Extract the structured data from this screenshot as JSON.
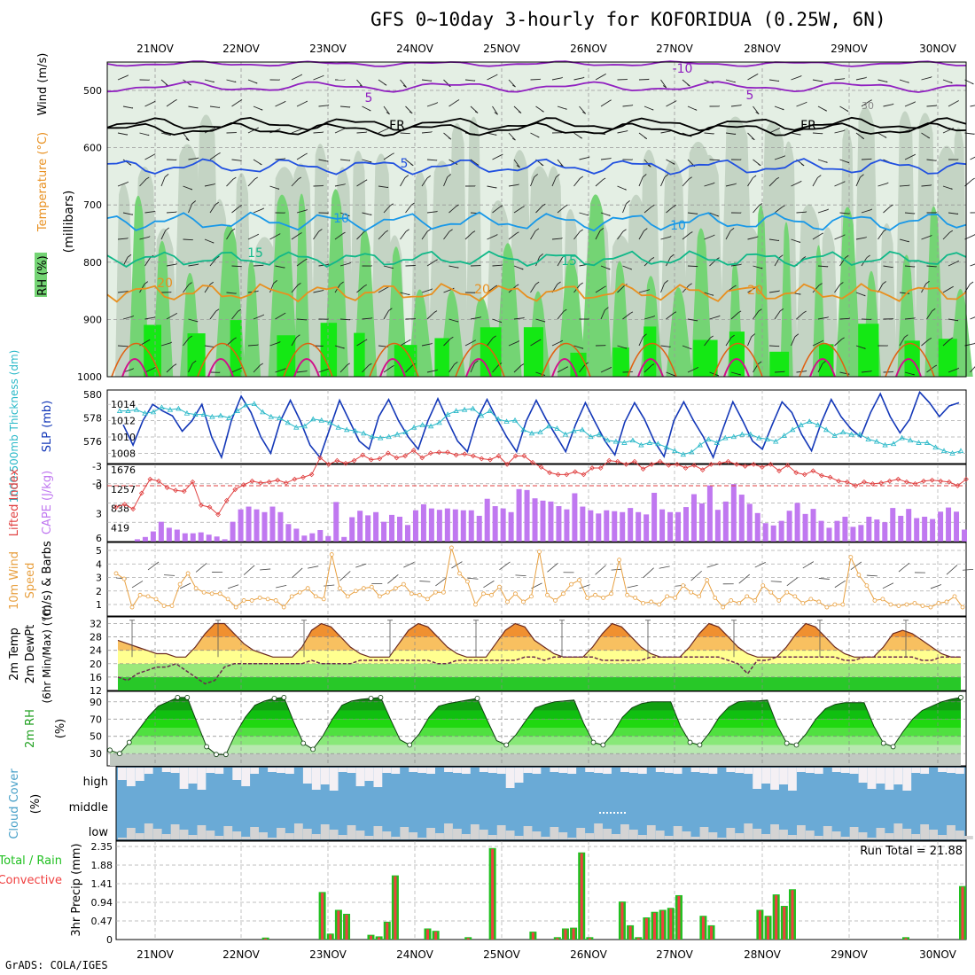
{
  "title": "GFS 0~10day 3-hourly for KOFORIDUA (0.25W, 6N)",
  "footer": "GrADS: COLA/IGES",
  "colors": {
    "rh_light": "#e4efe4",
    "rh_mid": "#c4d4c4",
    "rh_green": "#74d474",
    "rh_bright": "#14e814",
    "purple": "#9020c0",
    "black": "#000000",
    "blue": "#2050e0",
    "lightblue": "#1898e8",
    "teal": "#10b888",
    "orange": "#e89020",
    "darkorange": "#e06010",
    "magenta": "#d0108a",
    "slp": "#1438b8",
    "thick": "#28b8c8",
    "li": "#e04040",
    "cape": "#c078f0",
    "wind": "#e8a040",
    "temp_dark": "#e05000",
    "temp_mid": "#f09030",
    "temp_light": "#f8c060",
    "temp_yellow": "#ffff90",
    "temp_green": "#28c828",
    "cloud_blue": "#6aaad6",
    "cloud_white": "#f4f0f4",
    "rain_red": "#f04040",
    "rain_green": "#20c020"
  },
  "dates": [
    "21NOV",
    "22NOV",
    "23NOV",
    "24NOV",
    "25NOV",
    "26NOV",
    "27NOV",
    "28NOV",
    "29NOV",
    "30NOV"
  ],
  "chart_data": [
    {
      "type": "heatmap",
      "name": "upper-air",
      "ylabel_wind": "Wind (m/s)",
      "ylabel_temp": "Temperature (°C)",
      "ylabel_rh": "RH (%)",
      "ylabel_units": "(millibars)",
      "yticks": [
        "500",
        "600",
        "700",
        "800",
        "900",
        "1000"
      ],
      "contour_labels": [
        "-10",
        "5",
        "5",
        "FR",
        "FR",
        "5",
        "10",
        "10",
        "15",
        "15",
        "20",
        "20",
        "20"
      ],
      "extra_label": "30"
    },
    {
      "type": "line",
      "name": "slp-thickness",
      "ylabel_left": "1000-500mb Thickness (dm)",
      "ylabel_right": "SLP (mb)",
      "yticks_left": [
        "580",
        "578",
        "576"
      ],
      "yticks_right": [
        "1014",
        "1012",
        "1010",
        "1008"
      ],
      "slp": [
        1011.5,
        1009,
        1012,
        1014,
        1013.2,
        1012.6,
        1010.7,
        1012,
        1014,
        1010,
        1007.5,
        1012,
        1015,
        1013,
        1010,
        1008,
        1012,
        1014.5,
        1012,
        1009,
        1007.5,
        1011,
        1014.5,
        1012,
        1009.5,
        1008.5,
        1012.5,
        1014.6,
        1012,
        1010,
        1008.5,
        1012,
        1014.7,
        1012,
        1009.5,
        1008.2,
        1012.2,
        1014.6,
        1012.2,
        1010,
        1008.2,
        1012,
        1014.5,
        1012.2,
        1010.2,
        1008.2,
        1011.5,
        1014.2,
        1011.8,
        1009.5,
        1007.8,
        1011.8,
        1014.2,
        1012.2,
        1009.5,
        1007.6,
        1012,
        1014.3,
        1012,
        1010,
        1007.5,
        1011,
        1014.3,
        1012,
        1009.5,
        1008.5,
        1011.5,
        1014.3,
        1013,
        1010.3,
        1008.3,
        1011.8,
        1014.6,
        1012.5,
        1011,
        1010,
        1013,
        1015.3,
        1012.5,
        1010.5,
        1012.2,
        1015.5,
        1014.2,
        1012.5,
        1013.8,
        1014.2
      ],
      "thickness": [
        578.6,
        578.6,
        578.7,
        578.4,
        578.5,
        578.9,
        578.7,
        578.8,
        578.4,
        578.3,
        578.3,
        578.1,
        578.2,
        578.0,
        578.6,
        579.1,
        579.2,
        578.5,
        578.1,
        578.0,
        577.6,
        577.2,
        577.3,
        577.9,
        577.8,
        577.6,
        577.2,
        577.0,
        576.9,
        576.7,
        576.4,
        576.3,
        576.4,
        576.6,
        576.8,
        577.2,
        577.4,
        577.3,
        577.6,
        578.3,
        578.6,
        578.7,
        578.8,
        578.2,
        578.6,
        577.9,
        577.7,
        577.8,
        577.0,
        576.7,
        576.8,
        577.3,
        577.1,
        576.6,
        576.9,
        577.0,
        576.4,
        576.6,
        576.1,
        576.0,
        575.9,
        576.1,
        575.7,
        575.9,
        575.8,
        575.5,
        575.2,
        574.9,
        575.1,
        575.7,
        576.2,
        575.9,
        576.3,
        576.4,
        576.6,
        576.6,
        576.3,
        576.2,
        576.0,
        576.5,
        577.0,
        577.4,
        577.7,
        577.4,
        577.0,
        576.5,
        576.8,
        576.6,
        576.6,
        576.2,
        576.0,
        575.7,
        575.8,
        576.3,
        576.1,
        575.9,
        575.9,
        575.5,
        575.2,
        575.0,
        575.2
      ]
    },
    {
      "type": "bar",
      "name": "cape-lifted-index",
      "ylabel_left": "Lifted Index",
      "ylabel_right": "CAPE (J/kg)",
      "yticks_left": [
        "-3",
        "-3",
        "0",
        "3",
        "6"
      ],
      "yticks_right": [
        "1676",
        "1257",
        "838",
        "419"
      ],
      "cape": [
        0,
        0,
        50,
        100,
        220,
        430,
        300,
        260,
        180,
        180,
        200,
        150,
        110,
        50,
        430,
        700,
        760,
        700,
        640,
        760,
        640,
        380,
        280,
        130,
        180,
        250,
        120,
        860,
        100,
        530,
        670,
        570,
        640,
        430,
        580,
        540,
        360,
        680,
        810,
        720,
        690,
        720,
        700,
        680,
        680,
        560,
        930,
        770,
        720,
        640,
        1140,
        1120,
        940,
        890,
        870,
        770,
        700,
        1050,
        760,
        680,
        610,
        680,
        660,
        640,
        730,
        640,
        590,
        1060,
        700,
        640,
        640,
        750,
        1030,
        830,
        1220,
        690,
        870,
        1250,
        1020,
        820,
        620,
        400,
        350,
        450,
        670,
        840,
        600,
        710,
        450,
        300,
        450,
        540,
        320,
        360,
        540,
        480,
        420,
        730,
        560,
        710,
        510,
        540,
        490,
        650,
        740,
        650,
        260
      ],
      "lifted_index": [
        2.3,
        2.0,
        2.5,
        0.8,
        -0.7,
        -0.5,
        0.2,
        0.5,
        0.6,
        -0.4,
        2.1,
        2.3,
        3.1,
        1.6,
        0.4,
        -0.1,
        -0.5,
        -0.3,
        -0.4,
        -0.6,
        -0.3,
        -0.7,
        -0.9,
        -1.2,
        -3.0,
        -2.3,
        -2.7,
        -2.4,
        -2.7,
        -3.3,
        -2.8,
        -2.9,
        -3.5,
        -3.0,
        -3.2,
        -3.8,
        -3.0,
        -3.5,
        -3.6,
        -3.6,
        -3.3,
        -3.4,
        -3.2,
        -2.9,
        -2.8,
        -3.2,
        -2.3,
        -3.2,
        -3.2,
        -2.5,
        -2.0,
        -1.4,
        -1.2,
        -1.2,
        -1.5,
        -1.2,
        -1.9,
        -1.9,
        -2.7,
        -2.6,
        -2.3,
        -2.6,
        -1.8,
        -2.3,
        -2.6,
        -2.2,
        -2.3,
        -1.9,
        -2.2,
        -1.7,
        -2.3,
        -2.4,
        -2.6,
        -2.3,
        -2.1,
        -2.3,
        -2.0,
        -2.3,
        -1.6,
        -2.2,
        -1.4,
        -1.2,
        -1.6,
        -1.1,
        -0.9,
        -0.5,
        -0.4,
        0.0,
        -0.4,
        -0.2,
        -0.3,
        -0.5,
        -0.7,
        -0.4,
        -0.2,
        -0.5,
        -0.6,
        -0.5,
        -0.4,
        0.0,
        -0.7
      ]
    },
    {
      "type": "line",
      "name": "wind-10m",
      "ylabel": "10m Wind Speed (m/s) & Barbs",
      "yticks": [
        "5",
        "4",
        "3",
        "2",
        "1"
      ],
      "speed": [
        3.3,
        2.9,
        0.8,
        1.7,
        1.6,
        1.4,
        0.9,
        0.9,
        2.5,
        3.3,
        2.2,
        1.9,
        1.8,
        1.8,
        1.4,
        0.8,
        1.3,
        1.3,
        1.5,
        1.4,
        1.3,
        0.8,
        1.6,
        1.9,
        2.2,
        1.6,
        1.4,
        4.7,
        2.2,
        1.6,
        2.0,
        2.2,
        2.3,
        1.6,
        1.9,
        2.2,
        2.5,
        1.8,
        1.7,
        1.4,
        1.9,
        1.9,
        5.2,
        3.3,
        2.7,
        1.0,
        1.8,
        1.7,
        2.3,
        1.2,
        1.8,
        1.2,
        1.6,
        4.9,
        1.7,
        1.3,
        1.8,
        2.5,
        2.8,
        1.5,
        1.7,
        1.5,
        1.8,
        4.3,
        1.7,
        1.5,
        1.1,
        1.2,
        1.0,
        1.6,
        1.5,
        2.4,
        1.9,
        1.6,
        2.8,
        1.5,
        0.8,
        1.3,
        1.1,
        1.6,
        1.3,
        2.4,
        1.9,
        1.3,
        1.9,
        1.6,
        1.1,
        1.4,
        1.2,
        0.8,
        1.0,
        1.0,
        4.5,
        3.2,
        2.4,
        1.3,
        1.4,
        1.0,
        0.9,
        1.0,
        1.1,
        0.9,
        0.8,
        1.1,
        1.2,
        1.6,
        0.8
      ]
    },
    {
      "type": "area",
      "name": "temp-2m",
      "ylabel": "2m Temp 2m DewPt (6hr Min/Max) (°C)",
      "yticks": [
        "32",
        "28",
        "24",
        "20",
        "16",
        "12"
      ],
      "temp": [
        27,
        26,
        25,
        24,
        23,
        23,
        22,
        22,
        25,
        29,
        32,
        32,
        29,
        26,
        24,
        23,
        22,
        22,
        22,
        25,
        30,
        32,
        31,
        28,
        25,
        23,
        22,
        22,
        22,
        26,
        30,
        32,
        31,
        28,
        25,
        23,
        22,
        22,
        22,
        26,
        30,
        32,
        31,
        27,
        25,
        23,
        22,
        22,
        22,
        25,
        29,
        32,
        31,
        28,
        25,
        23,
        22,
        22,
        22,
        25,
        29,
        32,
        31,
        28,
        25,
        23,
        22,
        22,
        22,
        25,
        29,
        32,
        31,
        28,
        25,
        23,
        22,
        22,
        22,
        25,
        29,
        30,
        29,
        27,
        25,
        23,
        22,
        22
      ],
      "dewpt": [
        16,
        15,
        17,
        18,
        19,
        19,
        20,
        18,
        16,
        14,
        15,
        19,
        20,
        20,
        20,
        20,
        20,
        20,
        20,
        20,
        21,
        20,
        20,
        20,
        20,
        21,
        21,
        21,
        21,
        21,
        21,
        21,
        21,
        20,
        20,
        21,
        21,
        21,
        21,
        21,
        21,
        21,
        22,
        22,
        21,
        22,
        22,
        22,
        22,
        22,
        21,
        21,
        21,
        21,
        21,
        22,
        22,
        22,
        22,
        22,
        22,
        22,
        22,
        21,
        20,
        17,
        21,
        21,
        22,
        22,
        22,
        22,
        22,
        22,
        22,
        21,
        21,
        22,
        22,
        22,
        22,
        22,
        22,
        21,
        21,
        22,
        22,
        22
      ]
    },
    {
      "type": "area",
      "name": "rh-2m",
      "ylabel": "2m RH (%)",
      "yticks": [
        "90",
        "70",
        "50",
        "30"
      ],
      "rh": [
        34,
        30,
        43,
        58,
        73,
        85,
        90,
        95,
        95,
        66,
        38,
        29,
        29,
        53,
        72,
        86,
        91,
        94,
        95,
        67,
        42,
        35,
        50,
        70,
        86,
        91,
        93,
        94,
        95,
        70,
        46,
        40,
        53,
        72,
        85,
        88,
        90,
        92,
        94,
        69,
        45,
        40,
        52,
        68,
        83,
        87,
        90,
        91,
        92,
        65,
        43,
        40,
        53,
        72,
        83,
        88,
        90,
        90,
        90,
        62,
        43,
        40,
        54,
        72,
        84,
        90,
        91,
        91,
        92,
        63,
        42,
        40,
        53,
        70,
        82,
        87,
        89,
        89,
        89,
        62,
        42,
        38,
        55,
        70,
        80,
        85,
        90,
        93,
        95
      ]
    },
    {
      "type": "bar",
      "name": "cloud-cover",
      "ylabel": "Cloud Cover (%)",
      "levels": [
        "high",
        "middle",
        "low"
      ]
    },
    {
      "type": "bar",
      "name": "precip-3hr",
      "ylabel": "3hr Precip (mm)",
      "legend_total": "Total / Rain",
      "legend_convective": "Convective",
      "run_total_label": "Run Total = 21.88",
      "yticks": [
        "2.35",
        "1.88",
        "1.41",
        "0.94",
        "0.47",
        "0"
      ],
      "precip": [
        0,
        0,
        0,
        0,
        0,
        0,
        0,
        0,
        0,
        0,
        0,
        0,
        0,
        0,
        0,
        0,
        0,
        0,
        0.05,
        0,
        0,
        0,
        0,
        0,
        0,
        1.2,
        0.15,
        0.75,
        0.65,
        0,
        0,
        0.12,
        0.08,
        0.45,
        1.62,
        0,
        0,
        0,
        0.28,
        0.22,
        0,
        0,
        0,
        0.06,
        0,
        0,
        2.31,
        0,
        0,
        0,
        0,
        0.2,
        0,
        0,
        0.06,
        0.28,
        0.3,
        2.2,
        0.06,
        0,
        0,
        0,
        0.96,
        0.36,
        0.06,
        0.56,
        0.7,
        0.75,
        0.8,
        1.12,
        0,
        0,
        0.6,
        0.36,
        0,
        0,
        0,
        0,
        0,
        0.75,
        0.6,
        1.14,
        0.85,
        1.27,
        0,
        0,
        0,
        0,
        0,
        0,
        0,
        0,
        0,
        0,
        0,
        0,
        0,
        0.06,
        0,
        0,
        0,
        0,
        0,
        0,
        1.35
      ]
    }
  ]
}
